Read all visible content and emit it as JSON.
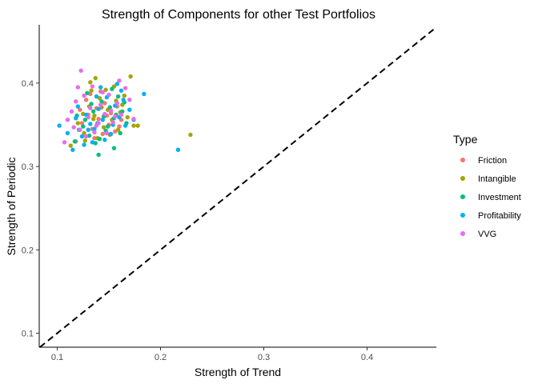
{
  "chart_data": {
    "type": "scatter",
    "title": "Strength of Components for other Test Portfolios",
    "xlabel": "Strength of Trend",
    "ylabel": "Strength of Periodic",
    "xlim": [
      0.085,
      0.47
    ],
    "ylim": [
      0.085,
      0.47
    ],
    "x_ticks": [
      "0.1",
      "0.2",
      "0.3",
      "0.4"
    ],
    "y_ticks": [
      "0.1",
      "0.2",
      "0.3",
      "0.4"
    ],
    "grid": false,
    "reference_line": {
      "style": "dashed",
      "slope": 1,
      "intercept": 0,
      "color": "#000000"
    },
    "legend": {
      "title": "Type",
      "position": "right"
    },
    "series": [
      {
        "name": "Friction",
        "color": "#F8766D",
        "points": [
          [
            0.118,
            0.33
          ],
          [
            0.124,
            0.352
          ],
          [
            0.13,
            0.362
          ],
          [
            0.134,
            0.345
          ],
          [
            0.138,
            0.37
          ],
          [
            0.14,
            0.357
          ],
          [
            0.144,
            0.339
          ],
          [
            0.146,
            0.376
          ],
          [
            0.15,
            0.35
          ],
          [
            0.152,
            0.364
          ],
          [
            0.156,
            0.342
          ],
          [
            0.158,
            0.372
          ],
          [
            0.162,
            0.356
          ],
          [
            0.128,
            0.38
          ],
          [
            0.142,
            0.39
          ],
          [
            0.136,
            0.334
          ],
          [
            0.148,
            0.361
          ],
          [
            0.16,
            0.348
          ],
          [
            0.122,
            0.368
          ],
          [
            0.132,
            0.387
          ]
        ]
      },
      {
        "name": "Intangible",
        "color": "#A3A500",
        "points": [
          [
            0.229,
            0.338
          ],
          [
            0.171,
            0.408
          ],
          [
            0.137,
            0.406
          ],
          [
            0.132,
            0.401
          ],
          [
            0.155,
            0.396
          ],
          [
            0.178,
            0.349
          ],
          [
            0.174,
            0.349
          ],
          [
            0.113,
            0.325
          ],
          [
            0.12,
            0.352
          ],
          [
            0.126,
            0.34
          ],
          [
            0.131,
            0.372
          ],
          [
            0.136,
            0.361
          ],
          [
            0.141,
            0.382
          ],
          [
            0.145,
            0.347
          ],
          [
            0.149,
            0.368
          ],
          [
            0.153,
            0.356
          ],
          [
            0.157,
            0.379
          ],
          [
            0.161,
            0.365
          ],
          [
            0.165,
            0.385
          ],
          [
            0.168,
            0.359
          ],
          [
            0.127,
            0.331
          ],
          [
            0.139,
            0.334
          ],
          [
            0.147,
            0.392
          ],
          [
            0.151,
            0.338
          ],
          [
            0.159,
            0.344
          ],
          [
            0.143,
            0.371
          ],
          [
            0.135,
            0.357
          ],
          [
            0.125,
            0.363
          ],
          [
            0.163,
            0.374
          ],
          [
            0.133,
            0.391
          ]
        ]
      },
      {
        "name": "Investment",
        "color": "#00BF7D",
        "points": [
          [
            0.14,
            0.314
          ],
          [
            0.155,
            0.322
          ],
          [
            0.117,
            0.33
          ],
          [
            0.121,
            0.344
          ],
          [
            0.127,
            0.356
          ],
          [
            0.131,
            0.337
          ],
          [
            0.135,
            0.366
          ],
          [
            0.139,
            0.352
          ],
          [
            0.143,
            0.378
          ],
          [
            0.147,
            0.343
          ],
          [
            0.151,
            0.371
          ],
          [
            0.155,
            0.358
          ],
          [
            0.159,
            0.384
          ],
          [
            0.163,
            0.366
          ],
          [
            0.167,
            0.352
          ],
          [
            0.129,
            0.388
          ],
          [
            0.137,
            0.328
          ],
          [
            0.145,
            0.36
          ],
          [
            0.153,
            0.393
          ],
          [
            0.161,
            0.34
          ],
          [
            0.133,
            0.375
          ],
          [
            0.149,
            0.348
          ],
          [
            0.141,
            0.333
          ],
          [
            0.157,
            0.362
          ],
          [
            0.125,
            0.348
          ],
          [
            0.119,
            0.361
          ],
          [
            0.165,
            0.377
          ]
        ]
      },
      {
        "name": "Profitability",
        "color": "#00B0F6",
        "points": [
          [
            0.217,
            0.32
          ],
          [
            0.184,
            0.387
          ],
          [
            0.102,
            0.349
          ],
          [
            0.115,
            0.32
          ],
          [
            0.11,
            0.34
          ],
          [
            0.118,
            0.358
          ],
          [
            0.124,
            0.336
          ],
          [
            0.128,
            0.362
          ],
          [
            0.132,
            0.351
          ],
          [
            0.136,
            0.345
          ],
          [
            0.14,
            0.369
          ],
          [
            0.144,
            0.356
          ],
          [
            0.148,
            0.383
          ],
          [
            0.152,
            0.339
          ],
          [
            0.156,
            0.373
          ],
          [
            0.16,
            0.359
          ],
          [
            0.164,
            0.38
          ],
          [
            0.166,
            0.349
          ],
          [
            0.17,
            0.368
          ],
          [
            0.174,
            0.356
          ],
          [
            0.126,
            0.326
          ],
          [
            0.134,
            0.329
          ],
          [
            0.146,
            0.332
          ],
          [
            0.158,
            0.399
          ],
          [
            0.142,
            0.395
          ],
          [
            0.12,
            0.372
          ],
          [
            0.138,
            0.384
          ],
          [
            0.154,
            0.35
          ],
          [
            0.13,
            0.344
          ],
          [
            0.162,
            0.391
          ]
        ]
      },
      {
        "name": "VVG",
        "color": "#E76BF3",
        "points": [
          [
            0.123,
            0.415
          ],
          [
            0.107,
            0.329
          ],
          [
            0.11,
            0.356
          ],
          [
            0.114,
            0.366
          ],
          [
            0.118,
            0.378
          ],
          [
            0.122,
            0.344
          ],
          [
            0.126,
            0.385
          ],
          [
            0.13,
            0.359
          ],
          [
            0.134,
            0.396
          ],
          [
            0.138,
            0.349
          ],
          [
            0.142,
            0.374
          ],
          [
            0.146,
            0.363
          ],
          [
            0.15,
            0.386
          ],
          [
            0.154,
            0.353
          ],
          [
            0.158,
            0.376
          ],
          [
            0.162,
            0.362
          ],
          [
            0.166,
            0.394
          ],
          [
            0.17,
            0.38
          ],
          [
            0.174,
            0.357
          ],
          [
            0.12,
            0.395
          ],
          [
            0.128,
            0.336
          ],
          [
            0.136,
            0.341
          ],
          [
            0.144,
            0.389
          ],
          [
            0.152,
            0.367
          ],
          [
            0.14,
            0.352
          ],
          [
            0.132,
            0.37
          ],
          [
            0.116,
            0.347
          ],
          [
            0.16,
            0.403
          ],
          [
            0.148,
            0.34
          ],
          [
            0.156,
            0.36
          ]
        ]
      }
    ]
  }
}
